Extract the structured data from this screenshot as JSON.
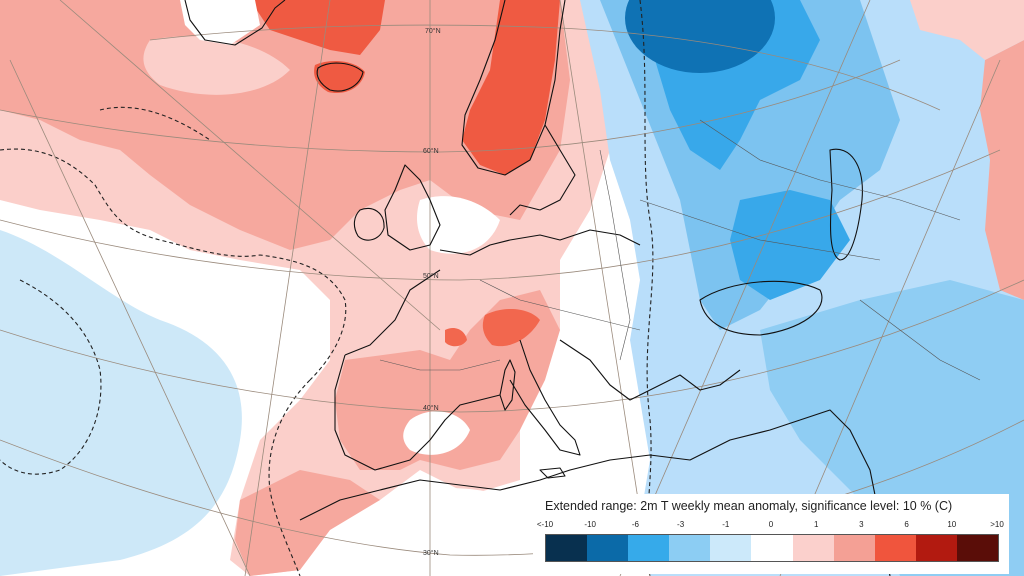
{
  "map": {
    "lat_labels": [
      "70°N",
      "60°N",
      "50°N",
      "40°N",
      "30°N"
    ]
  },
  "legend": {
    "title": "Extended range: 2m T weekly mean anomaly, significance level: 10 % (C)",
    "tick_labels": [
      "<-10",
      "-10",
      "-6",
      "-3",
      "-1",
      "0",
      "1",
      "3",
      "6",
      "10",
      ">10"
    ],
    "colors": [
      "#08304f",
      "#0b6aa8",
      "#36aaea",
      "#8ccdf3",
      "#cce9fa",
      "#ffffff",
      "#fbd0cc",
      "#f4a095",
      "#f0553d",
      "#b21a10",
      "#5a0d08"
    ]
  }
}
